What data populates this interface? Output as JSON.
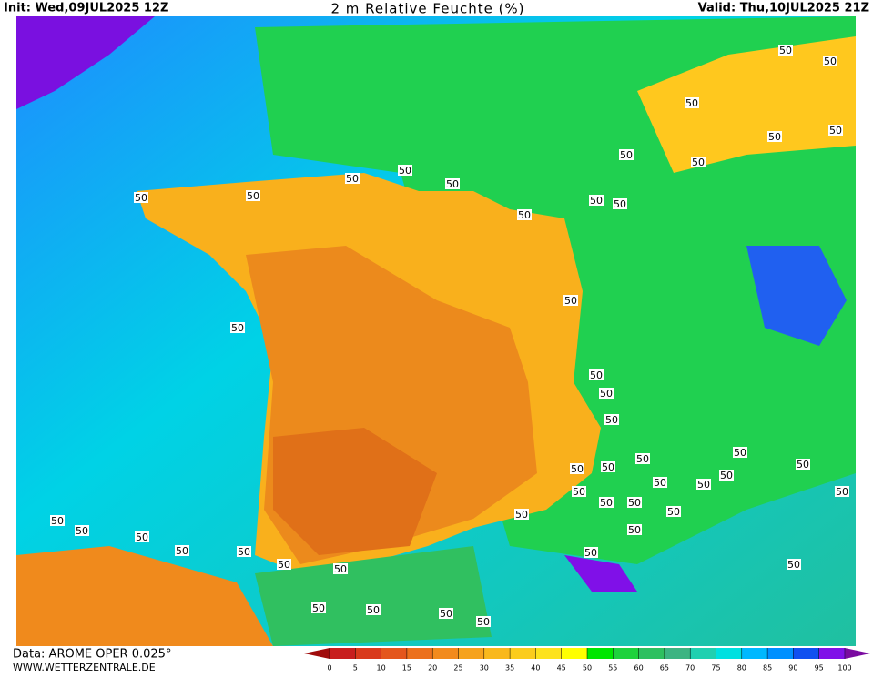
{
  "header": {
    "init": "Init: Wed,09JUL2025 12Z",
    "title": "2 m Relative Feuchte (%)",
    "valid": "Valid: Thu,10JUL2025 21Z"
  },
  "footer": {
    "data": "Data: AROME OPER 0.025°",
    "site": "WWW.WETTERZENTRALE.DE"
  },
  "colorbar": {
    "ticks": [
      0,
      5,
      10,
      15,
      20,
      25,
      30,
      35,
      40,
      45,
      50,
      55,
      60,
      65,
      70,
      75,
      80,
      85,
      90,
      95,
      100
    ],
    "colors": [
      "#c81e1e",
      "#d93a1c",
      "#e4561c",
      "#ec701c",
      "#f28a1c",
      "#f6a21c",
      "#f9b81c",
      "#fbcc1c",
      "#fde21c",
      "#ffff00",
      "#00e600",
      "#1ed23c",
      "#2ec060",
      "#3cb482",
      "#20d0b0",
      "#00e0e0",
      "#00b8ff",
      "#0090ff",
      "#1050f0",
      "#8010e8"
    ],
    "under_color": "#a00c0c",
    "over_color": "#7a0aa0"
  },
  "contour_labels": [
    50,
    50,
    50,
    50,
    50,
    50,
    50,
    50,
    50,
    50,
    50,
    50,
    50,
    50,
    50,
    50,
    50,
    50,
    50,
    50,
    50,
    50,
    50,
    50,
    50,
    50,
    50,
    50,
    50,
    50,
    50,
    50,
    50,
    50,
    50,
    50,
    50,
    50,
    50,
    50,
    50,
    50,
    50,
    50,
    50,
    50,
    50,
    50
  ]
}
